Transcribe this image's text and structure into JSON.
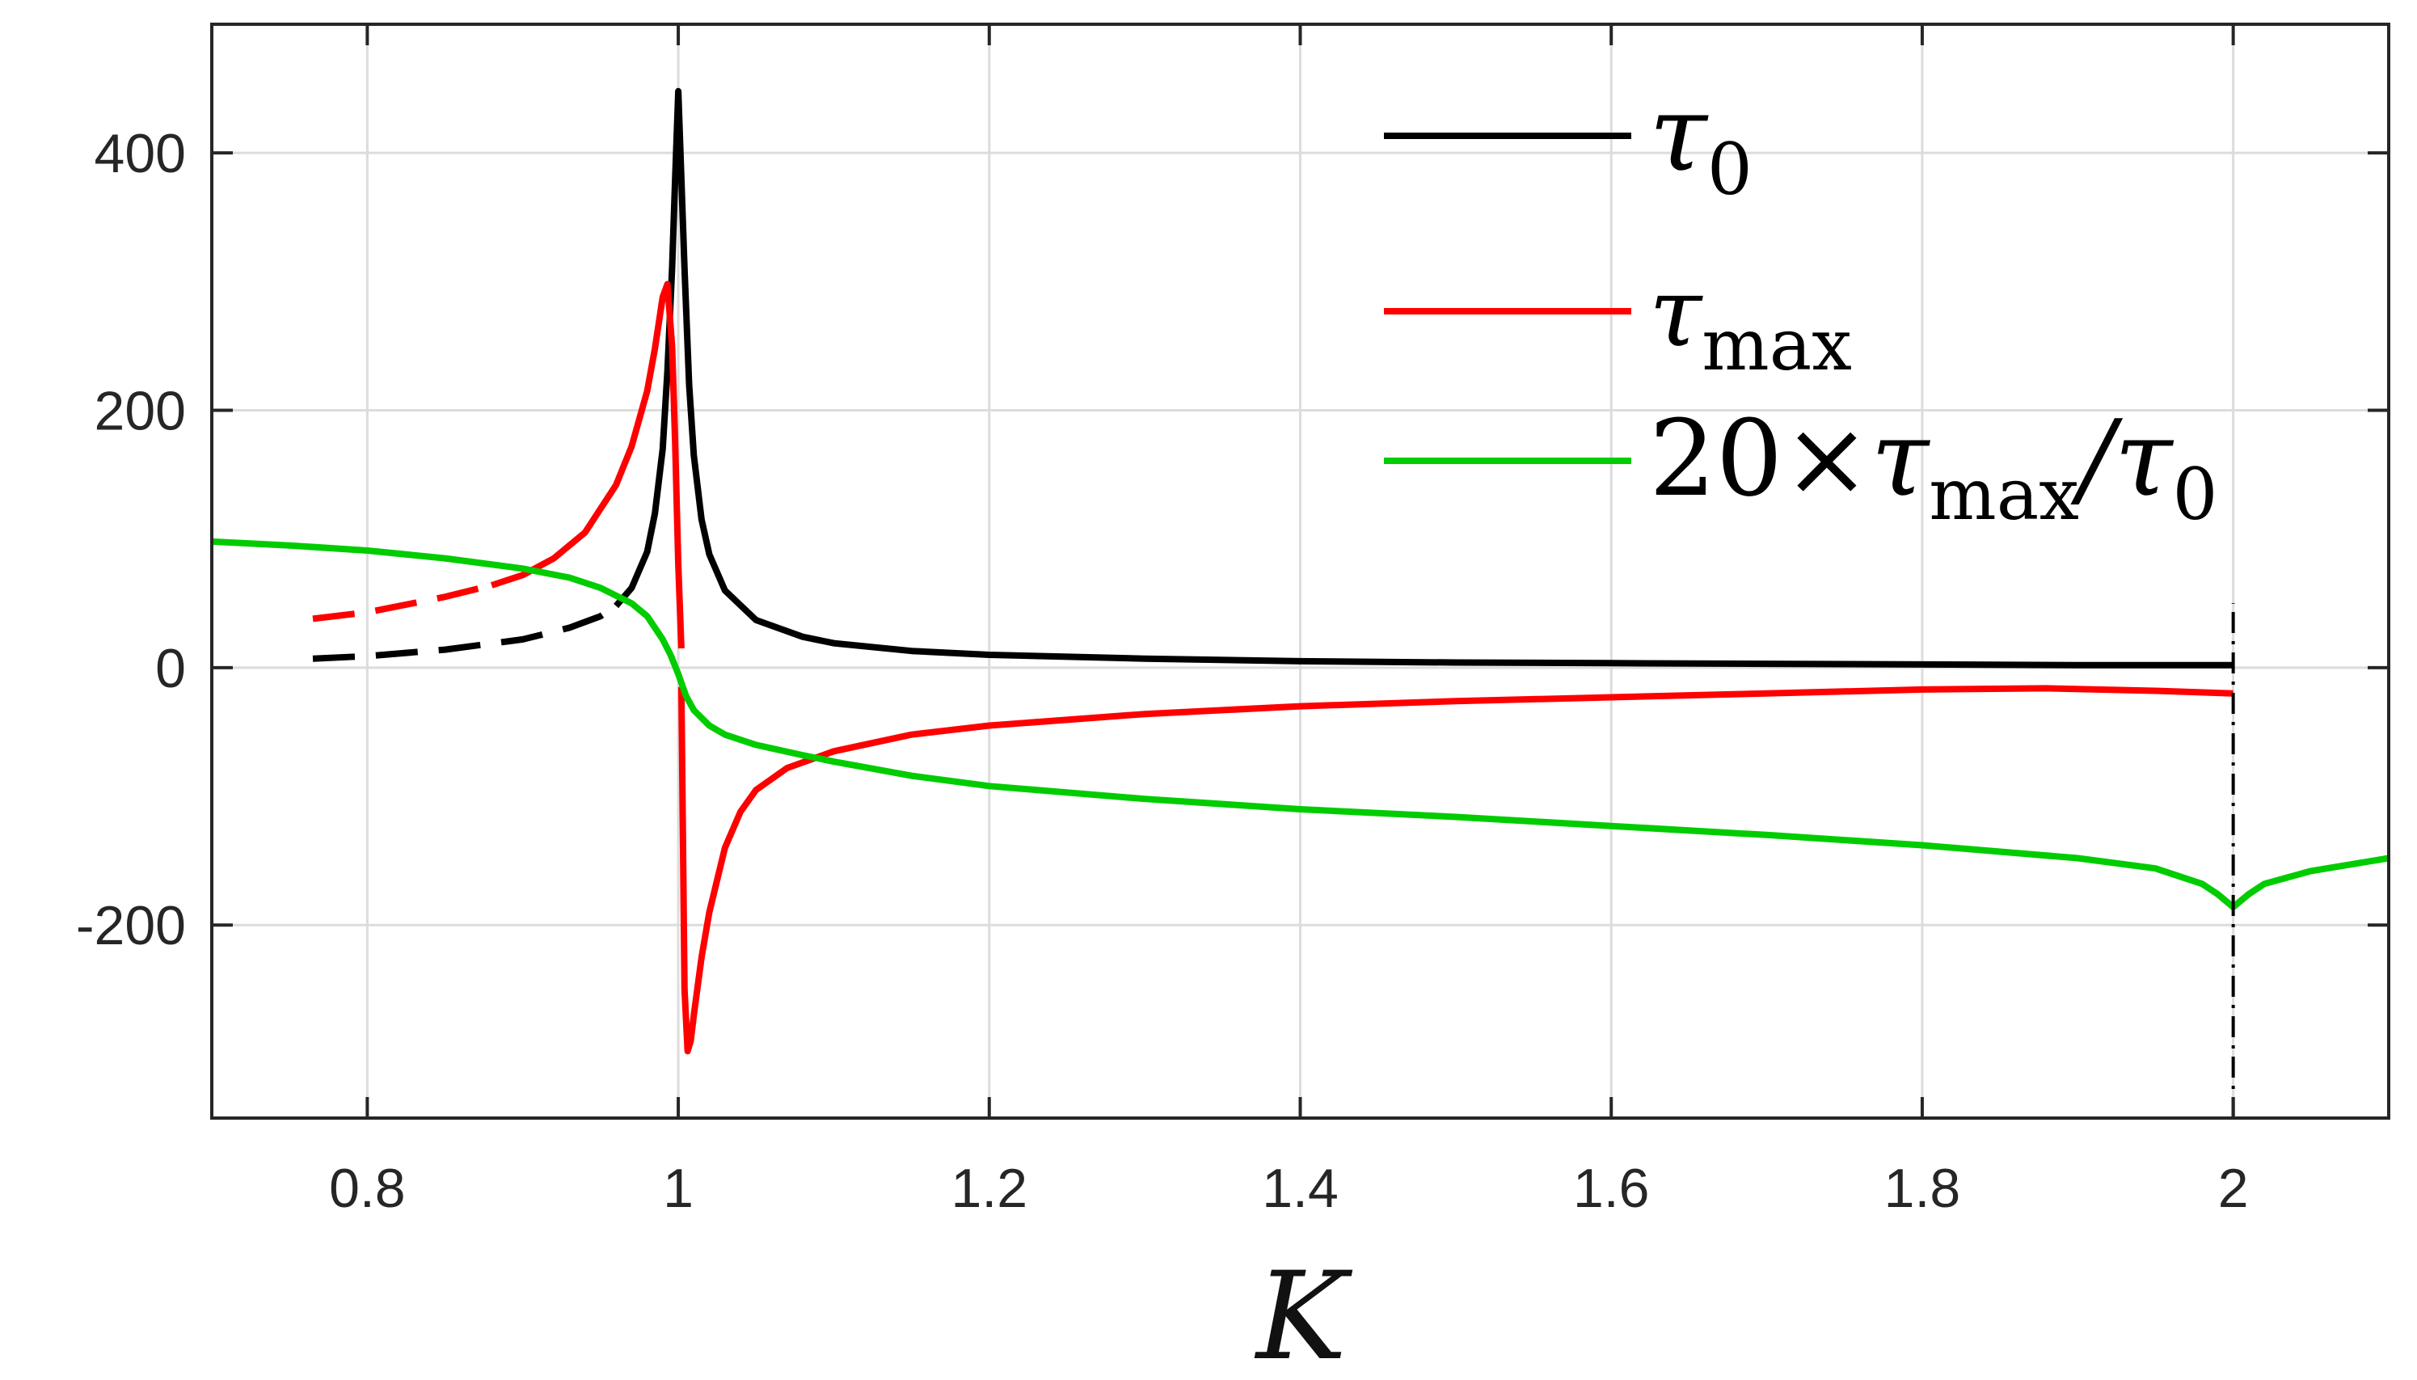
{
  "chart_data": {
    "type": "line",
    "title": "",
    "xlabel": "K",
    "ylabel": "",
    "xlim": [
      0.7,
      2.1
    ],
    "ylim": [
      -350,
      500
    ],
    "grid": true,
    "legend_position": "top-right",
    "x_ticks": [
      0.8,
      1,
      1.2,
      1.4,
      1.6,
      1.8,
      2
    ],
    "x_tick_labels": [
      "0.8",
      "1",
      "1.2",
      "1.4",
      "1.6",
      "1.8",
      "2"
    ],
    "y_ticks": [
      -200,
      0,
      200,
      400
    ],
    "y_tick_labels": [
      "-200",
      "0",
      "200",
      "400"
    ],
    "colors": {
      "tau0": "#000000",
      "tau_max": "#ff0000",
      "ratio": "#00cc00",
      "grid": "#dcdcdc",
      "axes": "#262626"
    },
    "legend": [
      {
        "key": "tau0",
        "symbol": "τ",
        "sub": "0",
        "suffix": ""
      },
      {
        "key": "tau_max",
        "symbol": "τ",
        "sub": "max",
        "suffix": ""
      },
      {
        "key": "ratio",
        "prefix": "20×",
        "symbol": "τ",
        "sub": "max",
        "suffix": "/τ",
        "sub2": "0"
      }
    ],
    "series": [
      {
        "key": "tau0",
        "dashed": {
          "x": [
            0.765,
            0.8,
            0.85,
            0.9,
            0.93,
            0.95,
            0.96
          ],
          "y": [
            7,
            9,
            14,
            22,
            31,
            40,
            48
          ]
        },
        "solid": {
          "x": [
            0.96,
            0.97,
            0.98,
            0.985,
            0.99,
            0.993,
            0.996,
            0.998,
            1.0,
            1.002,
            1.004,
            1.007,
            1.01,
            1.015,
            1.02,
            1.03,
            1.05,
            1.08,
            1.1,
            1.15,
            1.2,
            1.3,
            1.4,
            1.5,
            1.6,
            1.7,
            1.8,
            1.9,
            2.0
          ],
          "y": [
            48,
            62,
            90,
            120,
            170,
            230,
            310,
            380,
            448,
            380,
            310,
            220,
            165,
            115,
            88,
            60,
            37,
            24,
            19,
            13,
            10,
            7,
            5,
            4,
            3.5,
            3,
            2.5,
            2,
            2
          ]
        }
      },
      {
        "key": "tau_max",
        "dashed": {
          "x": [
            0.765,
            0.8,
            0.85,
            0.88
          ],
          "y": [
            38,
            43,
            55,
            64
          ]
        },
        "solid_upper": {
          "x": [
            0.88,
            0.9,
            0.92,
            0.94,
            0.96,
            0.97,
            0.98,
            0.985,
            0.99,
            0.993,
            0.996,
            0.998,
            1.0,
            1.002
          ],
          "y": [
            64,
            72,
            85,
            105,
            142,
            172,
            215,
            248,
            288,
            298,
            250,
            175,
            80,
            15
          ]
        },
        "solid_lower": {
          "x": [
            1.002,
            1.004,
            1.006,
            1.008,
            1.01,
            1.015,
            1.02,
            1.03,
            1.04,
            1.05,
            1.07,
            1.1,
            1.15,
            1.2,
            1.3,
            1.4,
            1.5,
            1.6,
            1.7,
            1.8,
            1.88,
            1.95,
            2.0
          ],
          "y": [
            -15,
            -250,
            -298,
            -290,
            -270,
            -225,
            -190,
            -140,
            -112,
            -95,
            -78,
            -65,
            -52,
            -45,
            -36,
            -30,
            -26,
            -23,
            -20,
            -17,
            -16,
            -18,
            -20
          ]
        }
      },
      {
        "key": "ratio",
        "solid": {
          "x": [
            0.7,
            0.75,
            0.8,
            0.85,
            0.9,
            0.93,
            0.95,
            0.97,
            0.98,
            0.99,
            0.995,
            1.0,
            1.005,
            1.01,
            1.02,
            1.03,
            1.05,
            1.08,
            1.1,
            1.15,
            1.2,
            1.3,
            1.4,
            1.5,
            1.6,
            1.7,
            1.8,
            1.9,
            1.95,
            1.98,
            1.99,
            2.0,
            2.01,
            2.02,
            2.05,
            2.1
          ],
          "y": [
            98,
            95,
            91,
            85,
            77,
            70,
            62,
            50,
            40,
            22,
            10,
            -5,
            -22,
            -33,
            -45,
            -52,
            -60,
            -68,
            -73,
            -84,
            -92,
            -102,
            -110,
            -116,
            -123,
            -130,
            -138,
            -148,
            -156,
            -168,
            -176,
            -186,
            -176,
            -168,
            -158,
            -148
          ]
        }
      }
    ],
    "vertical_marker": {
      "x": 2,
      "y_from": -350,
      "y_to": 50,
      "style": "dash-dot"
    }
  }
}
